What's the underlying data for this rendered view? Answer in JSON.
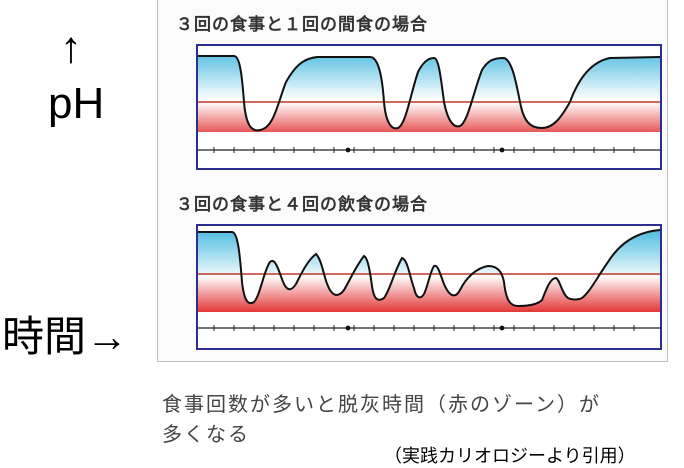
{
  "axis_labels": {
    "y_arrow": "↑",
    "y": "pH",
    "x": "時間→"
  },
  "panels": [
    {
      "title": "３回の食事と１回の間食の場合"
    },
    {
      "title": "３回の食事と４回の飲食の場合"
    }
  ],
  "caption": {
    "line1": "食事回数が多いと脱灰時間（赤のゾーン）が",
    "line2": "多くなる"
  },
  "citation": "（実践カリオロジーより引用）",
  "colors": {
    "frame": "#2c2f8f",
    "critical_line": "#c0392b",
    "safe_zone": "#5bc0de",
    "demineralization_zone": "#e53935",
    "curve": "#111111"
  }
}
